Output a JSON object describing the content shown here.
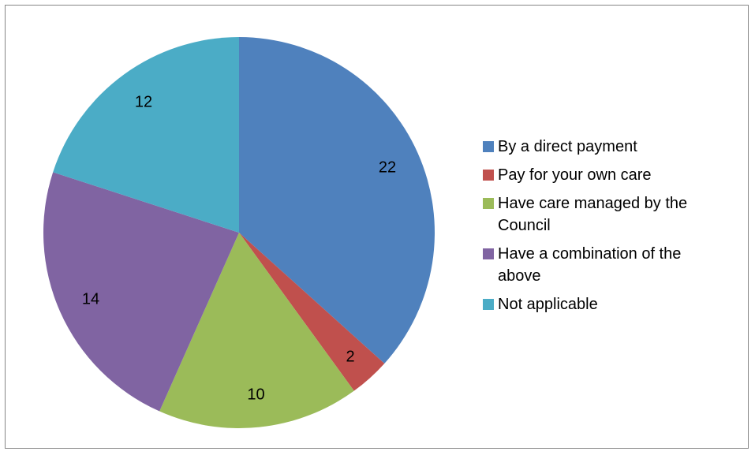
{
  "chart_data": {
    "type": "pie",
    "title": "",
    "categories": [
      "By a direct payment",
      "Pay for your own care",
      "Have care managed by the Council",
      "Have a combination of the above",
      "Not applicable"
    ],
    "values": [
      22,
      2,
      10,
      14,
      12
    ],
    "colors": [
      "#4F81BD",
      "#C0504D",
      "#9BBB59",
      "#8064A2",
      "#4BACC6"
    ],
    "data_labels": [
      "22",
      "2",
      "10",
      "14",
      "12"
    ],
    "legend_position": "right",
    "start_angle": "12 o'clock",
    "direction": "clockwise"
  },
  "legend": {
    "items": [
      {
        "label_line1": "By a direct payment",
        "label_line2": ""
      },
      {
        "label_line1": "Pay for your own care",
        "label_line2": ""
      },
      {
        "label_line1": "Have care managed by the",
        "label_line2": "Council"
      },
      {
        "label_line1": "Have a combination of the",
        "label_line2": "above"
      },
      {
        "label_line1": "Not applicable",
        "label_line2": ""
      }
    ]
  }
}
